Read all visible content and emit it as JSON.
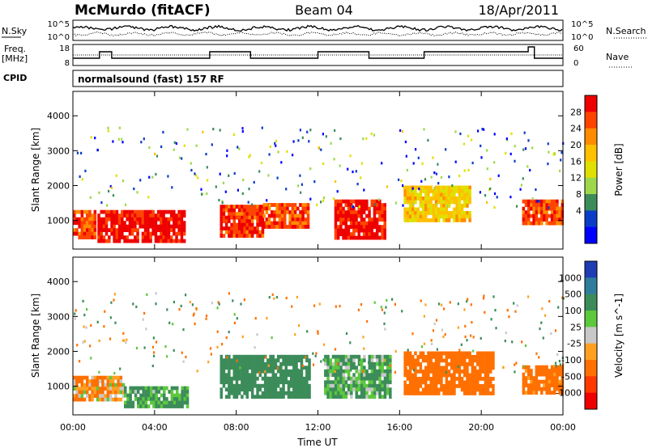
{
  "header": {
    "station": "McMurdo (fitACF)",
    "beam": "Beam 04",
    "date": "18/Apr/2011",
    "mode": "normalsound (fast) 157 RF"
  },
  "status_panels": {
    "nsky_label": "N.Sky",
    "nsky_ticks": [
      "10^5",
      "10^0"
    ],
    "nsearch_label": "N.Search",
    "nsearch_ticks": [
      "10^5",
      "10^0"
    ],
    "freq_label_1": "Freq.",
    "freq_label_2": "[MHz]",
    "freq_ticks": [
      "18",
      "8"
    ],
    "nave_label": "Nave",
    "nave_ticks": [
      "60",
      "0"
    ],
    "cpid_label": "CPID"
  },
  "chart_data": [
    {
      "type": "heatmap",
      "parameter": "power",
      "ylabel": "Slant Range [km]",
      "yticks": [
        1000,
        2000,
        3000,
        4000
      ],
      "ylim": [
        180,
        4700
      ],
      "colorbar_label": "Power [dB]",
      "colorbar_ticks": [
        "28",
        "24",
        "20",
        "16",
        "12",
        "8",
        "4"
      ],
      "colorbar_colors": [
        "#ee0000",
        "#ff4400",
        "#ff8c00",
        "#ffc000",
        "#e0e000",
        "#9ed84a",
        "#3c8c5a",
        "#0a3cc8",
        "#0000ff"
      ],
      "regions": [
        {
          "t0": 0.0,
          "t1": 1.2,
          "r0": 500,
          "r1": 1300,
          "level": 24
        },
        {
          "t0": 1.2,
          "t1": 5.5,
          "r0": 400,
          "r1": 1300,
          "level": 27
        },
        {
          "t0": 7.2,
          "t1": 9.3,
          "r0": 500,
          "r1": 1450,
          "level": 25
        },
        {
          "t0": 9.3,
          "t1": 11.6,
          "r0": 800,
          "r1": 1500,
          "level": 24
        },
        {
          "t0": 12.8,
          "t1": 15.3,
          "r0": 500,
          "r1": 1600,
          "level": 26
        },
        {
          "t0": 16.2,
          "t1": 19.5,
          "r0": 1000,
          "r1": 2000,
          "level": 18
        },
        {
          "t0": 22.0,
          "t1": 24.0,
          "r0": 900,
          "r1": 1600,
          "level": 24
        }
      ]
    },
    {
      "type": "heatmap",
      "parameter": "velocity",
      "ylabel": "Slant Range [km]",
      "yticks": [
        1000,
        2000,
        3000,
        4000
      ],
      "ylim": [
        180,
        4700
      ],
      "colorbar_label": "Velocity [m s^-1]",
      "colorbar_ticks": [
        "1000",
        "500",
        "100",
        "25",
        "-25",
        "-100",
        "-500",
        "-1000"
      ],
      "colorbar_colors": [
        "#1e3cb4",
        "#2f7d9c",
        "#3c8c5a",
        "#5cc83c",
        "#c8c8c8",
        "#ffa020",
        "#ff7000",
        "#ff3800",
        "#ee0000"
      ],
      "regions": [
        {
          "t0": 0.0,
          "t1": 2.5,
          "r0": 600,
          "r1": 1300,
          "level": -80
        },
        {
          "t0": 2.5,
          "t1": 5.7,
          "r0": 400,
          "r1": 1000,
          "level": 150
        },
        {
          "t0": 7.2,
          "t1": 11.6,
          "r0": 600,
          "r1": 1900,
          "level": 250
        },
        {
          "t0": 12.3,
          "t1": 15.6,
          "r0": 600,
          "r1": 1900,
          "level": 120
        },
        {
          "t0": 16.2,
          "t1": 20.6,
          "r0": 700,
          "r1": 2000,
          "level": -300
        },
        {
          "t0": 22.0,
          "t1": 24.0,
          "r0": 800,
          "r1": 1600,
          "level": -200
        }
      ]
    }
  ],
  "time_axis": {
    "ticks": [
      "00:00",
      "04:00",
      "08:00",
      "12:00",
      "16:00",
      "20:00",
      "00:00"
    ],
    "label": "Time UT",
    "range_hours": [
      0,
      24
    ]
  }
}
